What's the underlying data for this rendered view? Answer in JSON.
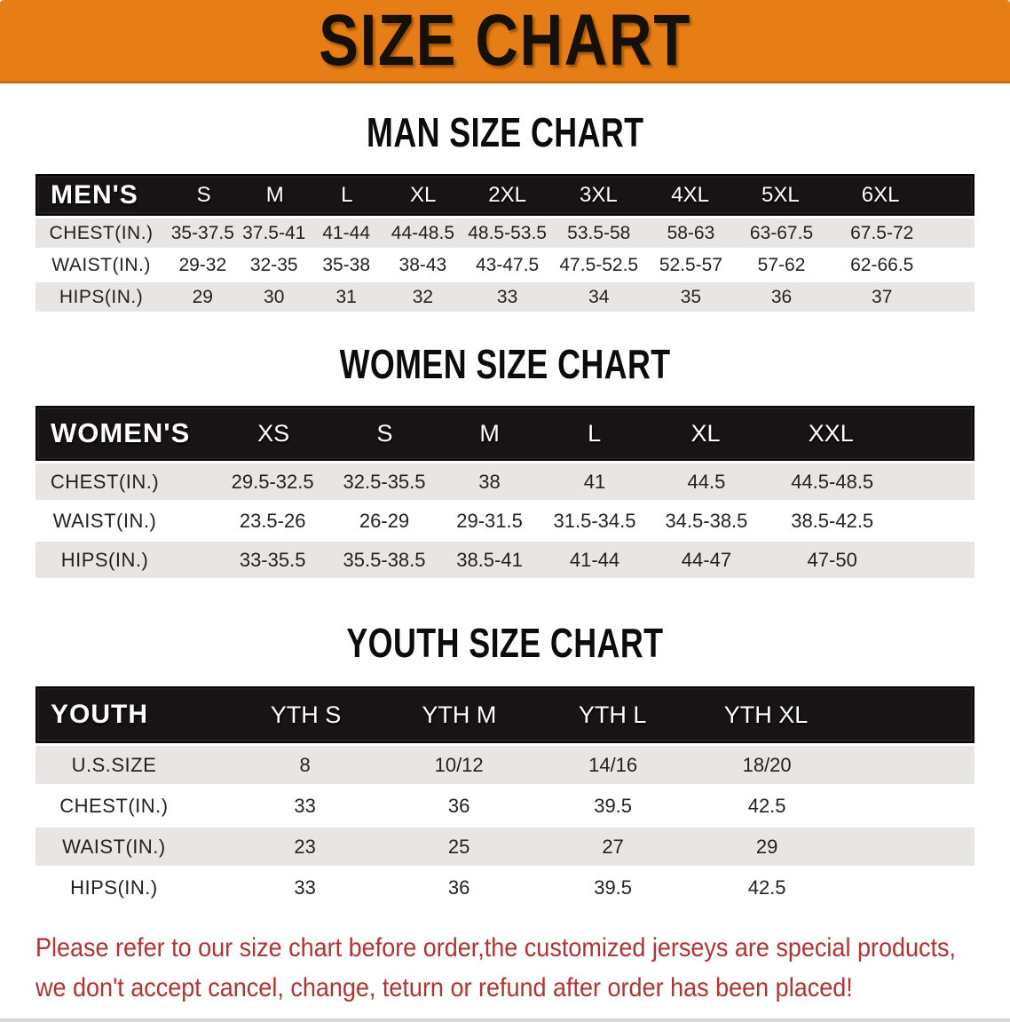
{
  "theme": {
    "banner_bg": "#e77d15",
    "banner_text": "#161007",
    "header_bg": "#181415",
    "header_text": "#ffffff",
    "row_gray": "#e7e6e4",
    "row_white": "#ffffff",
    "table_text": "#222222",
    "heading_text": "#0c0c0c",
    "disclaimer_red": "#b23330"
  },
  "banner": {
    "title": "SIZE CHART"
  },
  "sections": [
    {
      "id": "men",
      "heading": "MAN SIZE CHART",
      "table": {
        "label": "MEN'S",
        "columns": [
          "S",
          "M",
          "L",
          "XL",
          "2XL",
          "3XL",
          "4XL",
          "5XL",
          "6XL"
        ],
        "rows": [
          {
            "label": "CHEST(IN.)",
            "values": [
              "35-37.5",
              "37.5-41",
              "41-44",
              "44-48.5",
              "48.5-53.5",
              "53.5-58",
              "58-63",
              "63-67.5",
              "67.5-72"
            ]
          },
          {
            "label": "WAIST(IN.)",
            "values": [
              "29-32",
              "32-35",
              "35-38",
              "38-43",
              "43-47.5",
              "47.5-52.5",
              "52.5-57",
              "57-62",
              "62-66.5"
            ]
          },
          {
            "label": "HIPS(IN.)",
            "values": [
              "29",
              "30",
              "31",
              "32",
              "33",
              "34",
              "35",
              "36",
              "37"
            ]
          }
        ]
      }
    },
    {
      "id": "women",
      "heading": "WOMEN SIZE CHART",
      "table": {
        "label": "WOMEN'S",
        "columns": [
          "XS",
          "S",
          "M",
          "L",
          "XL",
          "XXL"
        ],
        "rows": [
          {
            "label": "CHEST(IN.)",
            "values": [
              "29.5-32.5",
              "32.5-35.5",
              "38",
              "41",
              "44.5",
              "44.5-48.5"
            ]
          },
          {
            "label": "WAIST(IN.)",
            "values": [
              "23.5-26",
              "26-29",
              "29-31.5",
              "31.5-34.5",
              "34.5-38.5",
              "38.5-42.5"
            ]
          },
          {
            "label": "HIPS(IN.)",
            "values": [
              "33-35.5",
              "35.5-38.5",
              "38.5-41",
              "41-44",
              "44-47",
              "47-50"
            ]
          }
        ]
      }
    },
    {
      "id": "youth",
      "heading": "YOUTH SIZE CHART",
      "table": {
        "label": "YOUTH",
        "columns": [
          "YTH S",
          "YTH M",
          "YTH L",
          "YTH XL"
        ],
        "rows": [
          {
            "label": "U.S.SIZE",
            "values": [
              "8",
              "10/12",
              "14/16",
              "18/20"
            ]
          },
          {
            "label": "CHEST(IN.)",
            "values": [
              "33",
              "36",
              "39.5",
              "42.5"
            ]
          },
          {
            "label": "WAIST(IN.)",
            "values": [
              "23",
              "25",
              "27",
              "29"
            ]
          },
          {
            "label": "HIPS(IN.)",
            "values": [
              "33",
              "36",
              "39.5",
              "42.5"
            ]
          }
        ]
      }
    }
  ],
  "disclaimer": {
    "lines": [
      "Please refer to our size chart before order,the customized jerseys are special products,",
      "we don't accept cancel, change, teturn or refund after order has been placed!"
    ]
  }
}
